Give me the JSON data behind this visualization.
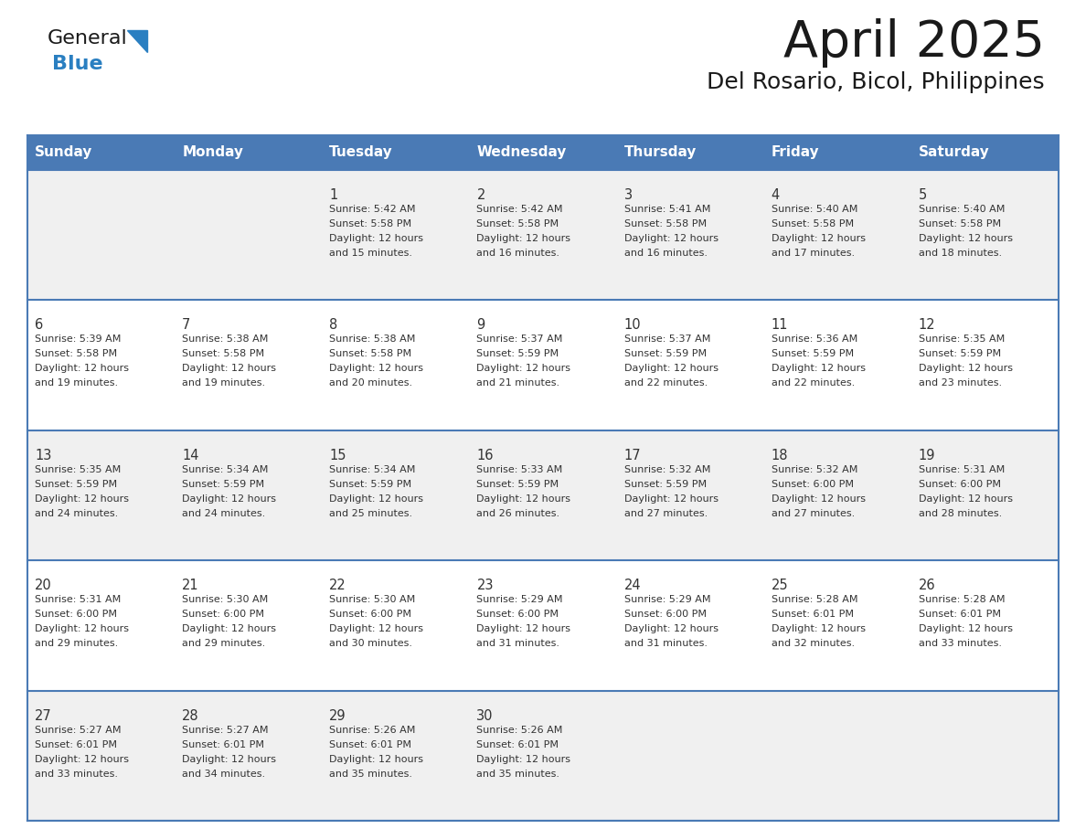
{
  "title": "April 2025",
  "subtitle": "Del Rosario, Bicol, Philippines",
  "header_bg_color": "#4a7ab5",
  "header_text_color": "#ffffff",
  "row_bg_colors": [
    "#f0f0f0",
    "#ffffff"
  ],
  "border_color": "#4a7ab5",
  "days_of_week": [
    "Sunday",
    "Monday",
    "Tuesday",
    "Wednesday",
    "Thursday",
    "Friday",
    "Saturday"
  ],
  "weeks": [
    {
      "days": [
        {
          "day": "",
          "sunrise": "",
          "sunset": "",
          "daylight": ""
        },
        {
          "day": "",
          "sunrise": "",
          "sunset": "",
          "daylight": ""
        },
        {
          "day": "1",
          "sunrise": "Sunrise: 5:42 AM",
          "sunset": "Sunset: 5:58 PM",
          "daylight": "Daylight: 12 hours\nand 15 minutes."
        },
        {
          "day": "2",
          "sunrise": "Sunrise: 5:42 AM",
          "sunset": "Sunset: 5:58 PM",
          "daylight": "Daylight: 12 hours\nand 16 minutes."
        },
        {
          "day": "3",
          "sunrise": "Sunrise: 5:41 AM",
          "sunset": "Sunset: 5:58 PM",
          "daylight": "Daylight: 12 hours\nand 16 minutes."
        },
        {
          "day": "4",
          "sunrise": "Sunrise: 5:40 AM",
          "sunset": "Sunset: 5:58 PM",
          "daylight": "Daylight: 12 hours\nand 17 minutes."
        },
        {
          "day": "5",
          "sunrise": "Sunrise: 5:40 AM",
          "sunset": "Sunset: 5:58 PM",
          "daylight": "Daylight: 12 hours\nand 18 minutes."
        }
      ]
    },
    {
      "days": [
        {
          "day": "6",
          "sunrise": "Sunrise: 5:39 AM",
          "sunset": "Sunset: 5:58 PM",
          "daylight": "Daylight: 12 hours\nand 19 minutes."
        },
        {
          "day": "7",
          "sunrise": "Sunrise: 5:38 AM",
          "sunset": "Sunset: 5:58 PM",
          "daylight": "Daylight: 12 hours\nand 19 minutes."
        },
        {
          "day": "8",
          "sunrise": "Sunrise: 5:38 AM",
          "sunset": "Sunset: 5:58 PM",
          "daylight": "Daylight: 12 hours\nand 20 minutes."
        },
        {
          "day": "9",
          "sunrise": "Sunrise: 5:37 AM",
          "sunset": "Sunset: 5:59 PM",
          "daylight": "Daylight: 12 hours\nand 21 minutes."
        },
        {
          "day": "10",
          "sunrise": "Sunrise: 5:37 AM",
          "sunset": "Sunset: 5:59 PM",
          "daylight": "Daylight: 12 hours\nand 22 minutes."
        },
        {
          "day": "11",
          "sunrise": "Sunrise: 5:36 AM",
          "sunset": "Sunset: 5:59 PM",
          "daylight": "Daylight: 12 hours\nand 22 minutes."
        },
        {
          "day": "12",
          "sunrise": "Sunrise: 5:35 AM",
          "sunset": "Sunset: 5:59 PM",
          "daylight": "Daylight: 12 hours\nand 23 minutes."
        }
      ]
    },
    {
      "days": [
        {
          "day": "13",
          "sunrise": "Sunrise: 5:35 AM",
          "sunset": "Sunset: 5:59 PM",
          "daylight": "Daylight: 12 hours\nand 24 minutes."
        },
        {
          "day": "14",
          "sunrise": "Sunrise: 5:34 AM",
          "sunset": "Sunset: 5:59 PM",
          "daylight": "Daylight: 12 hours\nand 24 minutes."
        },
        {
          "day": "15",
          "sunrise": "Sunrise: 5:34 AM",
          "sunset": "Sunset: 5:59 PM",
          "daylight": "Daylight: 12 hours\nand 25 minutes."
        },
        {
          "day": "16",
          "sunrise": "Sunrise: 5:33 AM",
          "sunset": "Sunset: 5:59 PM",
          "daylight": "Daylight: 12 hours\nand 26 minutes."
        },
        {
          "day": "17",
          "sunrise": "Sunrise: 5:32 AM",
          "sunset": "Sunset: 5:59 PM",
          "daylight": "Daylight: 12 hours\nand 27 minutes."
        },
        {
          "day": "18",
          "sunrise": "Sunrise: 5:32 AM",
          "sunset": "Sunset: 6:00 PM",
          "daylight": "Daylight: 12 hours\nand 27 minutes."
        },
        {
          "day": "19",
          "sunrise": "Sunrise: 5:31 AM",
          "sunset": "Sunset: 6:00 PM",
          "daylight": "Daylight: 12 hours\nand 28 minutes."
        }
      ]
    },
    {
      "days": [
        {
          "day": "20",
          "sunrise": "Sunrise: 5:31 AM",
          "sunset": "Sunset: 6:00 PM",
          "daylight": "Daylight: 12 hours\nand 29 minutes."
        },
        {
          "day": "21",
          "sunrise": "Sunrise: 5:30 AM",
          "sunset": "Sunset: 6:00 PM",
          "daylight": "Daylight: 12 hours\nand 29 minutes."
        },
        {
          "day": "22",
          "sunrise": "Sunrise: 5:30 AM",
          "sunset": "Sunset: 6:00 PM",
          "daylight": "Daylight: 12 hours\nand 30 minutes."
        },
        {
          "day": "23",
          "sunrise": "Sunrise: 5:29 AM",
          "sunset": "Sunset: 6:00 PM",
          "daylight": "Daylight: 12 hours\nand 31 minutes."
        },
        {
          "day": "24",
          "sunrise": "Sunrise: 5:29 AM",
          "sunset": "Sunset: 6:00 PM",
          "daylight": "Daylight: 12 hours\nand 31 minutes."
        },
        {
          "day": "25",
          "sunrise": "Sunrise: 5:28 AM",
          "sunset": "Sunset: 6:01 PM",
          "daylight": "Daylight: 12 hours\nand 32 minutes."
        },
        {
          "day": "26",
          "sunrise": "Sunrise: 5:28 AM",
          "sunset": "Sunset: 6:01 PM",
          "daylight": "Daylight: 12 hours\nand 33 minutes."
        }
      ]
    },
    {
      "days": [
        {
          "day": "27",
          "sunrise": "Sunrise: 5:27 AM",
          "sunset": "Sunset: 6:01 PM",
          "daylight": "Daylight: 12 hours\nand 33 minutes."
        },
        {
          "day": "28",
          "sunrise": "Sunrise: 5:27 AM",
          "sunset": "Sunset: 6:01 PM",
          "daylight": "Daylight: 12 hours\nand 34 minutes."
        },
        {
          "day": "29",
          "sunrise": "Sunrise: 5:26 AM",
          "sunset": "Sunset: 6:01 PM",
          "daylight": "Daylight: 12 hours\nand 35 minutes."
        },
        {
          "day": "30",
          "sunrise": "Sunrise: 5:26 AM",
          "sunset": "Sunset: 6:01 PM",
          "daylight": "Daylight: 12 hours\nand 35 minutes."
        },
        {
          "day": "",
          "sunrise": "",
          "sunset": "",
          "daylight": ""
        },
        {
          "day": "",
          "sunrise": "",
          "sunset": "",
          "daylight": ""
        },
        {
          "day": "",
          "sunrise": "",
          "sunset": "",
          "daylight": ""
        }
      ]
    }
  ],
  "logo_blue_color": "#2a7fc1",
  "logo_triangle_color": "#2a7fc1",
  "text_color": "#333333",
  "day_num_color": "#333333"
}
